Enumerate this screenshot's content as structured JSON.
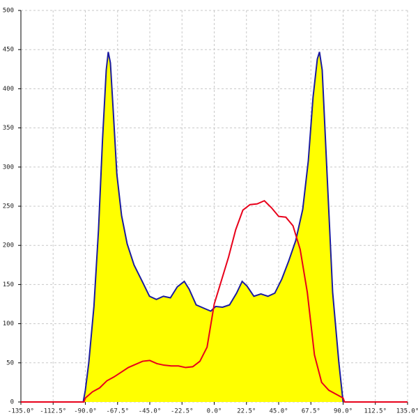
{
  "chart_data": {
    "type": "area",
    "grid": true,
    "xlim": [
      -135,
      135
    ],
    "ylim": [
      0,
      500
    ],
    "xticks": [
      {
        "value": -135,
        "label": "-135.0°"
      },
      {
        "value": -112.5,
        "label": "-112.5°"
      },
      {
        "value": -90,
        "label": "-90.0°"
      },
      {
        "value": -67.5,
        "label": "-67.5°"
      },
      {
        "value": -45,
        "label": "-45.0°"
      },
      {
        "value": -22.5,
        "label": "-22.5°"
      },
      {
        "value": 0,
        "label": "0.0°"
      },
      {
        "value": 22.5,
        "label": "22.5°"
      },
      {
        "value": 45,
        "label": "45.0°"
      },
      {
        "value": 67.5,
        "label": "67.5°"
      },
      {
        "value": 90,
        "label": "90.0°"
      },
      {
        "value": 112.5,
        "label": "112.5°"
      },
      {
        "value": 135,
        "label": "135.0°"
      }
    ],
    "yticks": [
      0,
      50,
      100,
      150,
      200,
      250,
      300,
      350,
      400,
      450,
      500
    ],
    "series": [
      {
        "color": "#1a1aa0",
        "fill": "#ffff00",
        "x": [
          -91.5,
          -90,
          -87.6,
          -84,
          -80.8,
          -78,
          -75.4,
          -74,
          -72.5,
          -70.5,
          -68,
          -64.7,
          -60.8,
          -56,
          -50,
          -45.2,
          -40.4,
          -35.5,
          -30.6,
          -25.8,
          -20.9,
          -17.5,
          -12.6,
          -6.3,
          -2.4,
          1,
          5.8,
          10.7,
          15.6,
          19.5,
          22.9,
          27.7,
          32.6,
          37.5,
          42.3,
          47.2,
          52,
          56.9,
          61.8,
          65.7,
          69,
          72,
          73.5,
          75.4,
          78.8,
          82.7,
          87,
          90
        ],
        "values": [
          0,
          15,
          50,
          122,
          220,
          335,
          424,
          447,
          433,
          371,
          291,
          238,
          202,
          175,
          153,
          135,
          131,
          135,
          133,
          147,
          154,
          144,
          124,
          119,
          116,
          122,
          121,
          124,
          139,
          154,
          148,
          135,
          138,
          135,
          139,
          157,
          180,
          206,
          246,
          308,
          389,
          438,
          447,
          424,
          291,
          140,
          51,
          0
        ]
      },
      {
        "color": "#e8001a",
        "x": [
          -135,
          -91,
          -90,
          -85,
          -80,
          -75,
          -70,
          -65,
          -60,
          -55,
          -50,
          -45,
          -40,
          -35,
          -30,
          -25,
          -20,
          -15,
          -10,
          -5,
          0,
          5,
          10,
          15,
          20,
          25,
          30,
          35,
          40,
          45,
          50,
          55,
          60,
          65,
          70,
          75,
          80,
          85,
          90,
          91,
          135
        ],
        "values": [
          0,
          0,
          5,
          13,
          18,
          27,
          32,
          38,
          44,
          48,
          52,
          53,
          49,
          47,
          46,
          46,
          44,
          45,
          52,
          70,
          125,
          155,
          185,
          220,
          245,
          252,
          253,
          257,
          248,
          237,
          236,
          225,
          195,
          140,
          60,
          25,
          15,
          10,
          5,
          0,
          0
        ]
      }
    ]
  }
}
